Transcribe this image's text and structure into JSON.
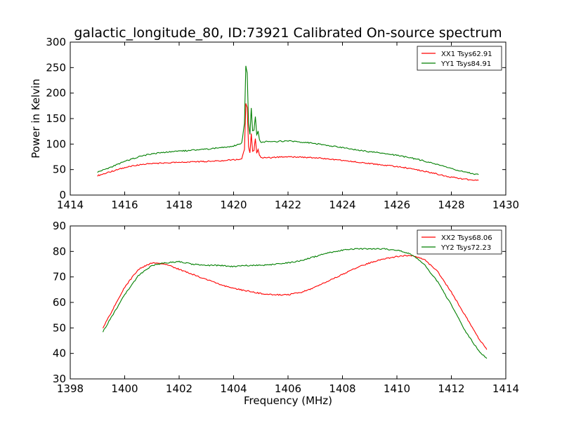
{
  "page": {
    "title": "galactic_longitude_80, ID:73921 Calibrated On-source spectrum"
  },
  "colors": {
    "red": "#ff0000",
    "green": "#007f00",
    "axis": "#000000",
    "background": "#ffffff"
  },
  "chart_data": [
    {
      "type": "line",
      "title": "galactic_longitude_80, ID:73921 Calibrated On-source spectrum",
      "xlabel": "",
      "ylabel": "Power in Kelvin",
      "xlim": [
        1414,
        1430
      ],
      "ylim": [
        0,
        300
      ],
      "xticks": [
        "1414",
        "1416",
        "1418",
        "1420",
        "1422",
        "1424",
        "1426",
        "1428",
        "1430"
      ],
      "yticks": [
        "0",
        "50",
        "100",
        "150",
        "200",
        "250",
        "300"
      ],
      "grid": false,
      "legend_position": "top-right",
      "series": [
        {
          "name": "XX1 Tsys62.91",
          "color": "#ff0000",
          "x": [
            1415.0,
            1415.5,
            1416.0,
            1416.5,
            1417.0,
            1417.5,
            1418.0,
            1418.5,
            1419.0,
            1419.5,
            1420.0,
            1420.3,
            1420.4,
            1420.45,
            1420.5,
            1420.55,
            1420.6,
            1420.65,
            1420.7,
            1420.75,
            1420.8,
            1420.85,
            1420.9,
            1420.95,
            1421.0,
            1421.1,
            1421.2,
            1421.5,
            1422.0,
            1422.5,
            1423.0,
            1423.5,
            1424.0,
            1424.5,
            1425.0,
            1425.5,
            1426.0,
            1426.5,
            1427.0,
            1427.5,
            1428.0,
            1428.5,
            1429.0
          ],
          "y": [
            38,
            46,
            54,
            59,
            62,
            63,
            64,
            65,
            66,
            67,
            69,
            71,
            90,
            180,
            172,
            95,
            82,
            120,
            85,
            88,
            110,
            82,
            90,
            78,
            74,
            73,
            73,
            74,
            75,
            74,
            73,
            71,
            68,
            65,
            62,
            59,
            56,
            52,
            47,
            41,
            35,
            31,
            29
          ]
        },
        {
          "name": "YY1 Tsys84.91",
          "color": "#007f00",
          "x": [
            1415.0,
            1415.5,
            1416.0,
            1416.5,
            1417.0,
            1417.5,
            1418.0,
            1418.5,
            1419.0,
            1419.5,
            1420.0,
            1420.3,
            1420.4,
            1420.45,
            1420.5,
            1420.55,
            1420.6,
            1420.65,
            1420.7,
            1420.75,
            1420.8,
            1420.85,
            1420.9,
            1420.95,
            1421.0,
            1421.1,
            1421.2,
            1421.5,
            1422.0,
            1422.5,
            1423.0,
            1423.5,
            1424.0,
            1424.5,
            1425.0,
            1425.5,
            1426.0,
            1426.5,
            1427.0,
            1427.5,
            1428.0,
            1428.5,
            1429.0
          ],
          "y": [
            45,
            55,
            66,
            75,
            81,
            84,
            86,
            88,
            90,
            93,
            96,
            102,
            140,
            253,
            240,
            140,
            118,
            170,
            125,
            128,
            155,
            118,
            125,
            108,
            104,
            104,
            105,
            105,
            106,
            104,
            101,
            97,
            93,
            89,
            85,
            82,
            78,
            73,
            67,
            60,
            52,
            45,
            40
          ]
        }
      ]
    },
    {
      "type": "line",
      "title": "",
      "xlabel": "Frequency (MHz)",
      "ylabel": "",
      "xlim": [
        1398,
        1414
      ],
      "ylim": [
        30,
        90
      ],
      "xticks": [
        "1398",
        "1400",
        "1402",
        "1404",
        "1406",
        "1408",
        "1410",
        "1412",
        "1414"
      ],
      "yticks": [
        "30",
        "40",
        "50",
        "60",
        "70",
        "80",
        "90"
      ],
      "grid": false,
      "legend_position": "top-right",
      "series": [
        {
          "name": "XX2 Tsys68.06",
          "color": "#ff0000",
          "x": [
            1399.2,
            1399.5,
            1400.0,
            1400.5,
            1401.0,
            1401.5,
            1402.0,
            1402.5,
            1403.0,
            1403.5,
            1404.0,
            1404.5,
            1405.0,
            1405.5,
            1406.0,
            1406.5,
            1407.0,
            1407.5,
            1408.0,
            1408.5,
            1409.0,
            1409.5,
            1410.0,
            1410.5,
            1411.0,
            1411.5,
            1412.0,
            1412.5,
            1413.0,
            1413.3
          ],
          "y": [
            50,
            56,
            66,
            73,
            75.5,
            75,
            73,
            71,
            69,
            67,
            65.5,
            64.5,
            63.5,
            63,
            63,
            64,
            66,
            68.5,
            71,
            73.5,
            75.5,
            77,
            78,
            78.5,
            77,
            72,
            64,
            55,
            46,
            41.5
          ]
        },
        {
          "name": "YY2 Tsys72.23",
          "color": "#007f00",
          "x": [
            1399.2,
            1399.5,
            1400.0,
            1400.5,
            1401.0,
            1401.5,
            1402.0,
            1402.5,
            1403.0,
            1403.5,
            1404.0,
            1404.5,
            1405.0,
            1405.5,
            1406.0,
            1406.5,
            1407.0,
            1407.5,
            1408.0,
            1408.5,
            1409.0,
            1409.5,
            1410.0,
            1410.5,
            1411.0,
            1411.5,
            1412.0,
            1412.5,
            1413.0,
            1413.3
          ],
          "y": [
            48.5,
            54,
            63,
            70.5,
            74.5,
            75.5,
            76,
            75,
            74.5,
            74.5,
            74,
            74.5,
            74.5,
            75,
            75.5,
            76.5,
            78,
            79.5,
            80.5,
            81,
            81,
            81,
            80.5,
            79,
            75,
            68,
            59,
            49,
            41,
            38
          ]
        }
      ]
    }
  ]
}
